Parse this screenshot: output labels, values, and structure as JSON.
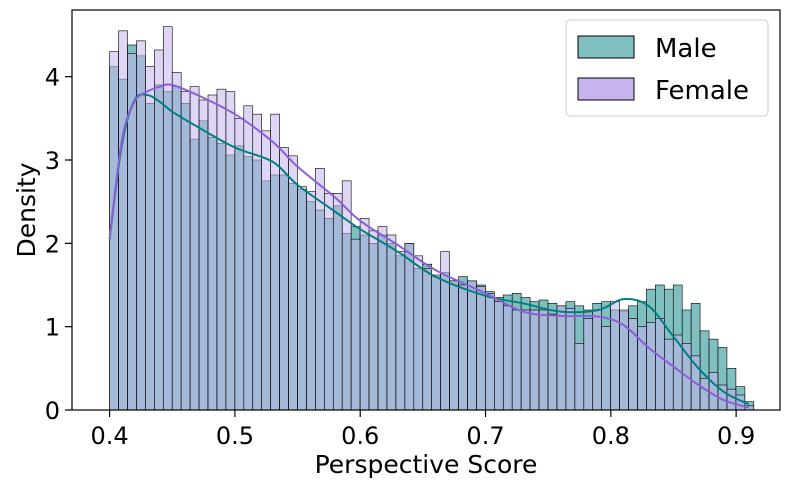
{
  "chart_data": {
    "type": "histogram",
    "xlabel": "Perspective Score",
    "ylabel": "Density",
    "xlim": [
      0.37,
      0.935
    ],
    "ylim": [
      0,
      4.8
    ],
    "x_ticks": [
      "0.4",
      "0.5",
      "0.6",
      "0.7",
      "0.8",
      "0.9"
    ],
    "y_ticks": [
      "0",
      "1",
      "2",
      "3",
      "4"
    ],
    "bin_edges": {
      "start": 0.4,
      "width": 0.00714,
      "count": 72
    },
    "legend": {
      "position": "top-right",
      "entries": [
        "Male",
        "Female"
      ]
    },
    "series": [
      {
        "name": "Male",
        "color": "#008080",
        "fill": "#7fbfbf",
        "kde_color": "#008080",
        "values": [
          4.12,
          3.97,
          4.38,
          4.25,
          3.68,
          3.9,
          3.82,
          3.88,
          3.68,
          3.25,
          3.47,
          3.27,
          3.2,
          3.06,
          3.17,
          3.04,
          3.0,
          2.75,
          2.82,
          2.82,
          2.72,
          2.65,
          2.5,
          2.4,
          2.3,
          2.45,
          2.12,
          2.2,
          2.1,
          2.0,
          2.1,
          2.0,
          1.85,
          2.0,
          1.7,
          1.75,
          1.6,
          1.65,
          1.55,
          1.6,
          1.55,
          1.5,
          1.42,
          1.35,
          1.38,
          1.4,
          1.35,
          1.3,
          1.32,
          1.28,
          1.25,
          1.3,
          1.25,
          1.2,
          1.28,
          1.3,
          1.2,
          1.18,
          1.25,
          1.3,
          1.45,
          1.5,
          1.45,
          1.5,
          1.2,
          1.28,
          0.95,
          0.85,
          0.75,
          0.5,
          0.28,
          0.1
        ],
        "kde": [
          [
            0.4,
            2.05
          ],
          [
            0.41,
            3.2
          ],
          [
            0.42,
            3.72
          ],
          [
            0.43,
            3.78
          ],
          [
            0.44,
            3.7
          ],
          [
            0.45,
            3.58
          ],
          [
            0.47,
            3.4
          ],
          [
            0.5,
            3.15
          ],
          [
            0.53,
            2.98
          ],
          [
            0.55,
            2.7
          ],
          [
            0.58,
            2.38
          ],
          [
            0.6,
            2.17
          ],
          [
            0.63,
            1.9
          ],
          [
            0.66,
            1.6
          ],
          [
            0.7,
            1.37
          ],
          [
            0.73,
            1.28
          ],
          [
            0.76,
            1.18
          ],
          [
            0.79,
            1.2
          ],
          [
            0.81,
            1.33
          ],
          [
            0.83,
            1.25
          ],
          [
            0.85,
            0.88
          ],
          [
            0.87,
            0.5
          ],
          [
            0.89,
            0.22
          ],
          [
            0.91,
            0.07
          ]
        ]
      },
      {
        "name": "Female",
        "color": "#8b5fd6",
        "fill": "#c5b4ee",
        "kde_color": "#8b5fd6",
        "values": [
          4.3,
          4.55,
          4.28,
          4.43,
          4.12,
          4.32,
          4.6,
          4.05,
          3.82,
          3.88,
          3.72,
          3.78,
          3.85,
          3.82,
          3.5,
          3.65,
          3.55,
          3.35,
          3.55,
          3.15,
          3.05,
          2.68,
          2.62,
          2.9,
          2.6,
          2.6,
          2.75,
          2.05,
          2.3,
          2.15,
          2.2,
          2.1,
          1.9,
          2.0,
          1.85,
          1.7,
          1.62,
          1.9,
          1.55,
          1.5,
          1.55,
          1.48,
          1.4,
          1.3,
          1.25,
          1.2,
          1.2,
          1.2,
          1.2,
          1.15,
          1.25,
          1.22,
          0.8,
          1.1,
          1.2,
          1.0,
          1.3,
          1.2,
          1.1,
          1.0,
          1.05,
          1.1,
          0.85,
          0.9,
          0.8,
          0.65,
          0.38,
          0.45,
          0.3,
          0.25,
          0.18,
          0.05
        ],
        "kde": [
          [
            0.4,
            2.05
          ],
          [
            0.41,
            3.25
          ],
          [
            0.42,
            3.7
          ],
          [
            0.43,
            3.82
          ],
          [
            0.44,
            3.88
          ],
          [
            0.45,
            3.9
          ],
          [
            0.47,
            3.78
          ],
          [
            0.5,
            3.55
          ],
          [
            0.53,
            3.22
          ],
          [
            0.55,
            2.92
          ],
          [
            0.58,
            2.55
          ],
          [
            0.6,
            2.27
          ],
          [
            0.63,
            1.98
          ],
          [
            0.66,
            1.68
          ],
          [
            0.7,
            1.4
          ],
          [
            0.73,
            1.18
          ],
          [
            0.76,
            1.13
          ],
          [
            0.79,
            1.12
          ],
          [
            0.81,
            1.02
          ],
          [
            0.83,
            0.75
          ],
          [
            0.85,
            0.52
          ],
          [
            0.87,
            0.3
          ],
          [
            0.89,
            0.12
          ],
          [
            0.91,
            0.03
          ]
        ]
      }
    ]
  }
}
